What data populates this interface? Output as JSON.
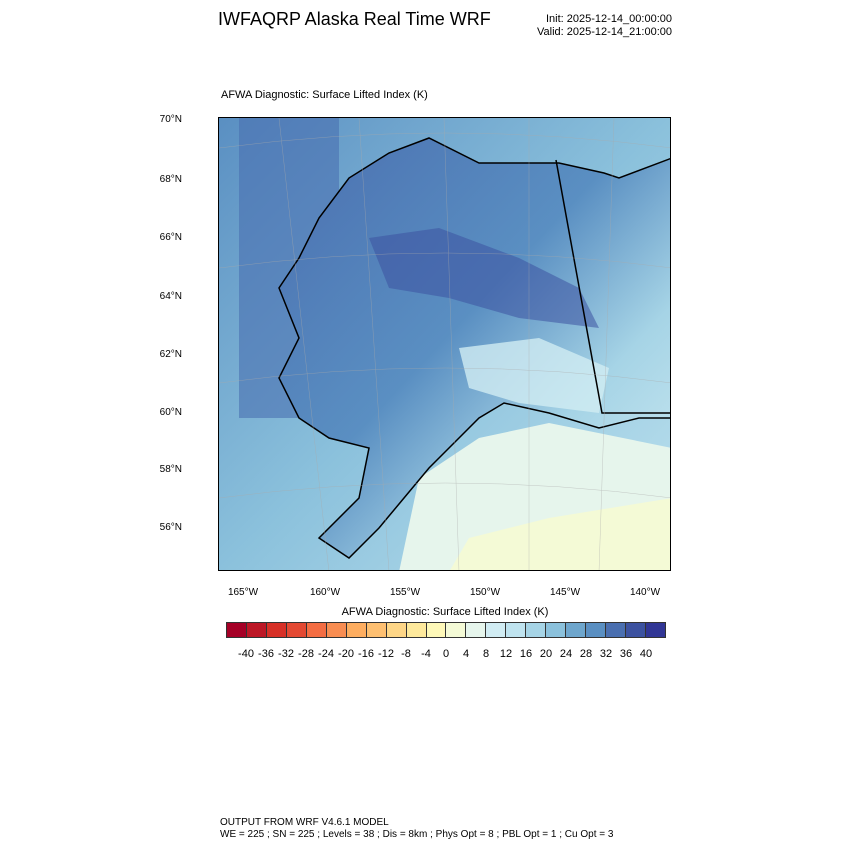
{
  "header": {
    "title": "IWFAQRP Alaska Real Time WRF",
    "init": "Init: 2025-12-14_00:00:00",
    "valid": "Valid: 2025-12-14_21:00:00"
  },
  "plot": {
    "field_title": "AFWA Diagnostic: Surface Lifted Index   (K)",
    "lat_labels": [
      "70°N",
      "68°N",
      "66°N",
      "64°N",
      "62°N",
      "60°N",
      "58°N",
      "56°N"
    ],
    "lon_labels": [
      "165°W",
      "160°W",
      "155°W",
      "150°W",
      "145°W",
      "140°W"
    ],
    "colors": {
      "ocean_west": "#4a6fb0",
      "ocean": "#6ea6cd",
      "gulf": "#e6f5ec",
      "gulf_south": "#f4fad6",
      "land_dark": "#3c52a0",
      "land_light": "#d1ecf3"
    }
  },
  "colorbar": {
    "title": "AFWA Diagnostic: Surface Lifted Index  (K)",
    "labels": [
      "-40",
      "-36",
      "-32",
      "-28",
      "-24",
      "-20",
      "-16",
      "-12",
      "-8",
      "-4",
      "0",
      "4",
      "8",
      "12",
      "16",
      "20",
      "24",
      "28",
      "32",
      "36",
      "40"
    ],
    "colors": [
      "#a50026",
      "#bd1726",
      "#d73027",
      "#e34933",
      "#f46d43",
      "#f88d52",
      "#fdad60",
      "#fdbf71",
      "#fed687",
      "#fee99c",
      "#fef8b8",
      "#f4fad6",
      "#e6f5ec",
      "#d1ecf3",
      "#bfe3ef",
      "#a6d4e6",
      "#8bc1dc",
      "#6ea6cd",
      "#5a8fc2",
      "#4a6fb0",
      "#3c52a0",
      "#313695"
    ]
  },
  "footer": {
    "line1": "OUTPUT FROM WRF V4.6.1 MODEL",
    "line2": "WE = 225 ; SN = 225 ; Levels = 38 ; Dis = 8km ; Phys Opt = 8 ; PBL Opt = 1 ; Cu Opt = 3"
  }
}
